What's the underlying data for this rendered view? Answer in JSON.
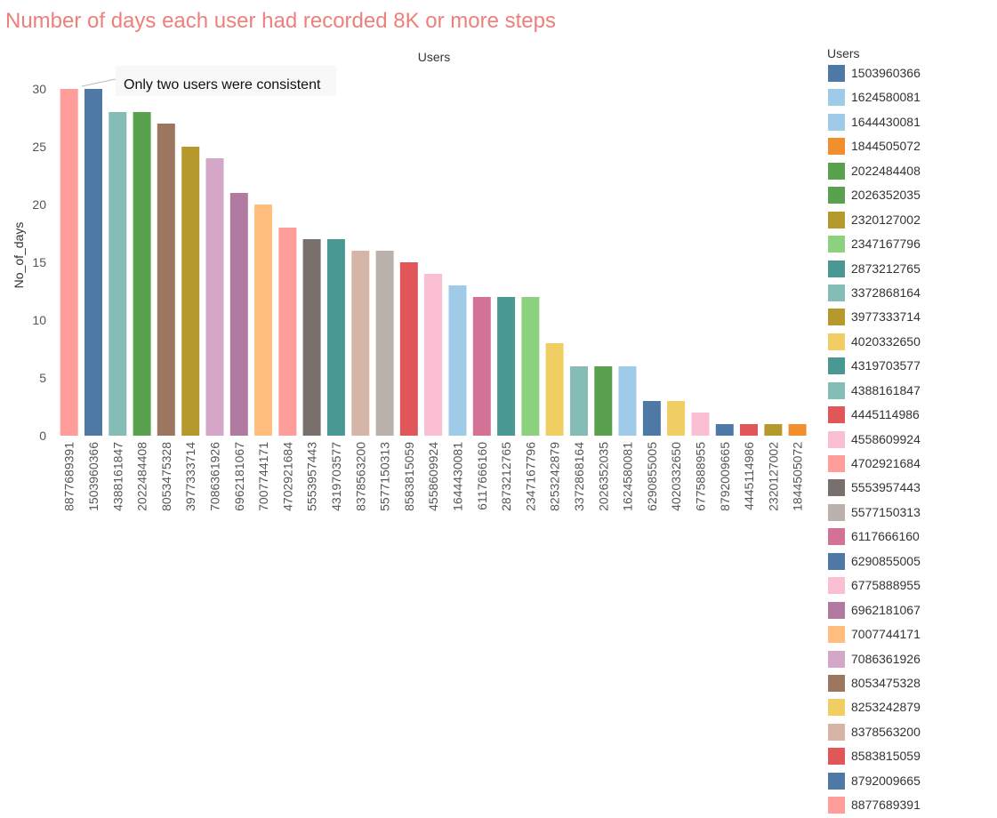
{
  "title": "Number of days each user had recorded  8K or more steps",
  "chart_data": {
    "type": "bar",
    "header_label": "Users",
    "ylabel": "No_of_days",
    "ylim": [
      0,
      32
    ],
    "yticks": [
      0,
      5,
      10,
      15,
      20,
      25,
      30
    ],
    "categories": [
      "8877689391",
      "1503960366",
      "4388161847",
      "2022484408",
      "8053475328",
      "3977333714",
      "7086361926",
      "6962181067",
      "7007744171",
      "4702921684",
      "5553957443",
      "4319703577",
      "8378563200",
      "5577150313",
      "8583815059",
      "4558609924",
      "1644430081",
      "6117666160",
      "2873212765",
      "2347167796",
      "8253242879",
      "3372868164",
      "2026352035",
      "1624580081",
      "6290855005",
      "4020332650",
      "6775888955",
      "8792009665",
      "4445114986",
      "2320127002",
      "1844505072"
    ],
    "values": [
      30,
      30,
      28,
      28,
      27,
      25,
      24,
      21,
      20,
      18,
      17,
      17,
      16,
      16,
      15,
      14,
      13,
      12,
      12,
      12,
      8,
      6,
      6,
      6,
      3,
      3,
      2,
      1,
      1,
      1,
      1
    ],
    "colors": [
      "#ff9d9a",
      "#4e79a7",
      "#86bcb6",
      "#59a14f",
      "#9d7660",
      "#b6992d",
      "#d4a6c8",
      "#b07aa1",
      "#ffbe7d",
      "#ff9d9a",
      "#79706e",
      "#499894",
      "#d7b5a6",
      "#bab0ac",
      "#e15759",
      "#fabfd2",
      "#a0cbe8",
      "#d37295",
      "#499894",
      "#8cd17d",
      "#f1ce63",
      "#86bcb6",
      "#59a14f",
      "#a0cbe8",
      "#4e79a7",
      "#f1ce63",
      "#fabfd2",
      "#4e79a7",
      "#e15759",
      "#b6992d",
      "#f28e2b"
    ],
    "annotation": "Only two users were consistent",
    "grid": false,
    "legend_position": "right"
  },
  "legend": {
    "title": "Users",
    "items": [
      {
        "label": "1503960366",
        "color": "#4e79a7"
      },
      {
        "label": "1624580081",
        "color": "#a0cbe8"
      },
      {
        "label": "1644430081",
        "color": "#a0cbe8"
      },
      {
        "label": "1844505072",
        "color": "#f28e2b"
      },
      {
        "label": "2022484408",
        "color": "#59a14f"
      },
      {
        "label": "2026352035",
        "color": "#59a14f"
      },
      {
        "label": "2320127002",
        "color": "#b6992d"
      },
      {
        "label": "2347167796",
        "color": "#8cd17d"
      },
      {
        "label": "2873212765",
        "color": "#499894"
      },
      {
        "label": "3372868164",
        "color": "#86bcb6"
      },
      {
        "label": "3977333714",
        "color": "#b6992d"
      },
      {
        "label": "4020332650",
        "color": "#f1ce63"
      },
      {
        "label": "4319703577",
        "color": "#499894"
      },
      {
        "label": "4388161847",
        "color": "#86bcb6"
      },
      {
        "label": "4445114986",
        "color": "#e15759"
      },
      {
        "label": "4558609924",
        "color": "#fabfd2"
      },
      {
        "label": "4702921684",
        "color": "#ff9d9a"
      },
      {
        "label": "5553957443",
        "color": "#79706e"
      },
      {
        "label": "5577150313",
        "color": "#bab0ac"
      },
      {
        "label": "6117666160",
        "color": "#d37295"
      },
      {
        "label": "6290855005",
        "color": "#4e79a7"
      },
      {
        "label": "6775888955",
        "color": "#fabfd2"
      },
      {
        "label": "6962181067",
        "color": "#b07aa1"
      },
      {
        "label": "7007744171",
        "color": "#ffbe7d"
      },
      {
        "label": "7086361926",
        "color": "#d4a6c8"
      },
      {
        "label": "8053475328",
        "color": "#9d7660"
      },
      {
        "label": "8253242879",
        "color": "#f1ce63"
      },
      {
        "label": "8378563200",
        "color": "#d7b5a6"
      },
      {
        "label": "8583815059",
        "color": "#e15759"
      },
      {
        "label": "8792009665",
        "color": "#4e79a7"
      },
      {
        "label": "8877689391",
        "color": "#ff9d9a"
      }
    ]
  }
}
